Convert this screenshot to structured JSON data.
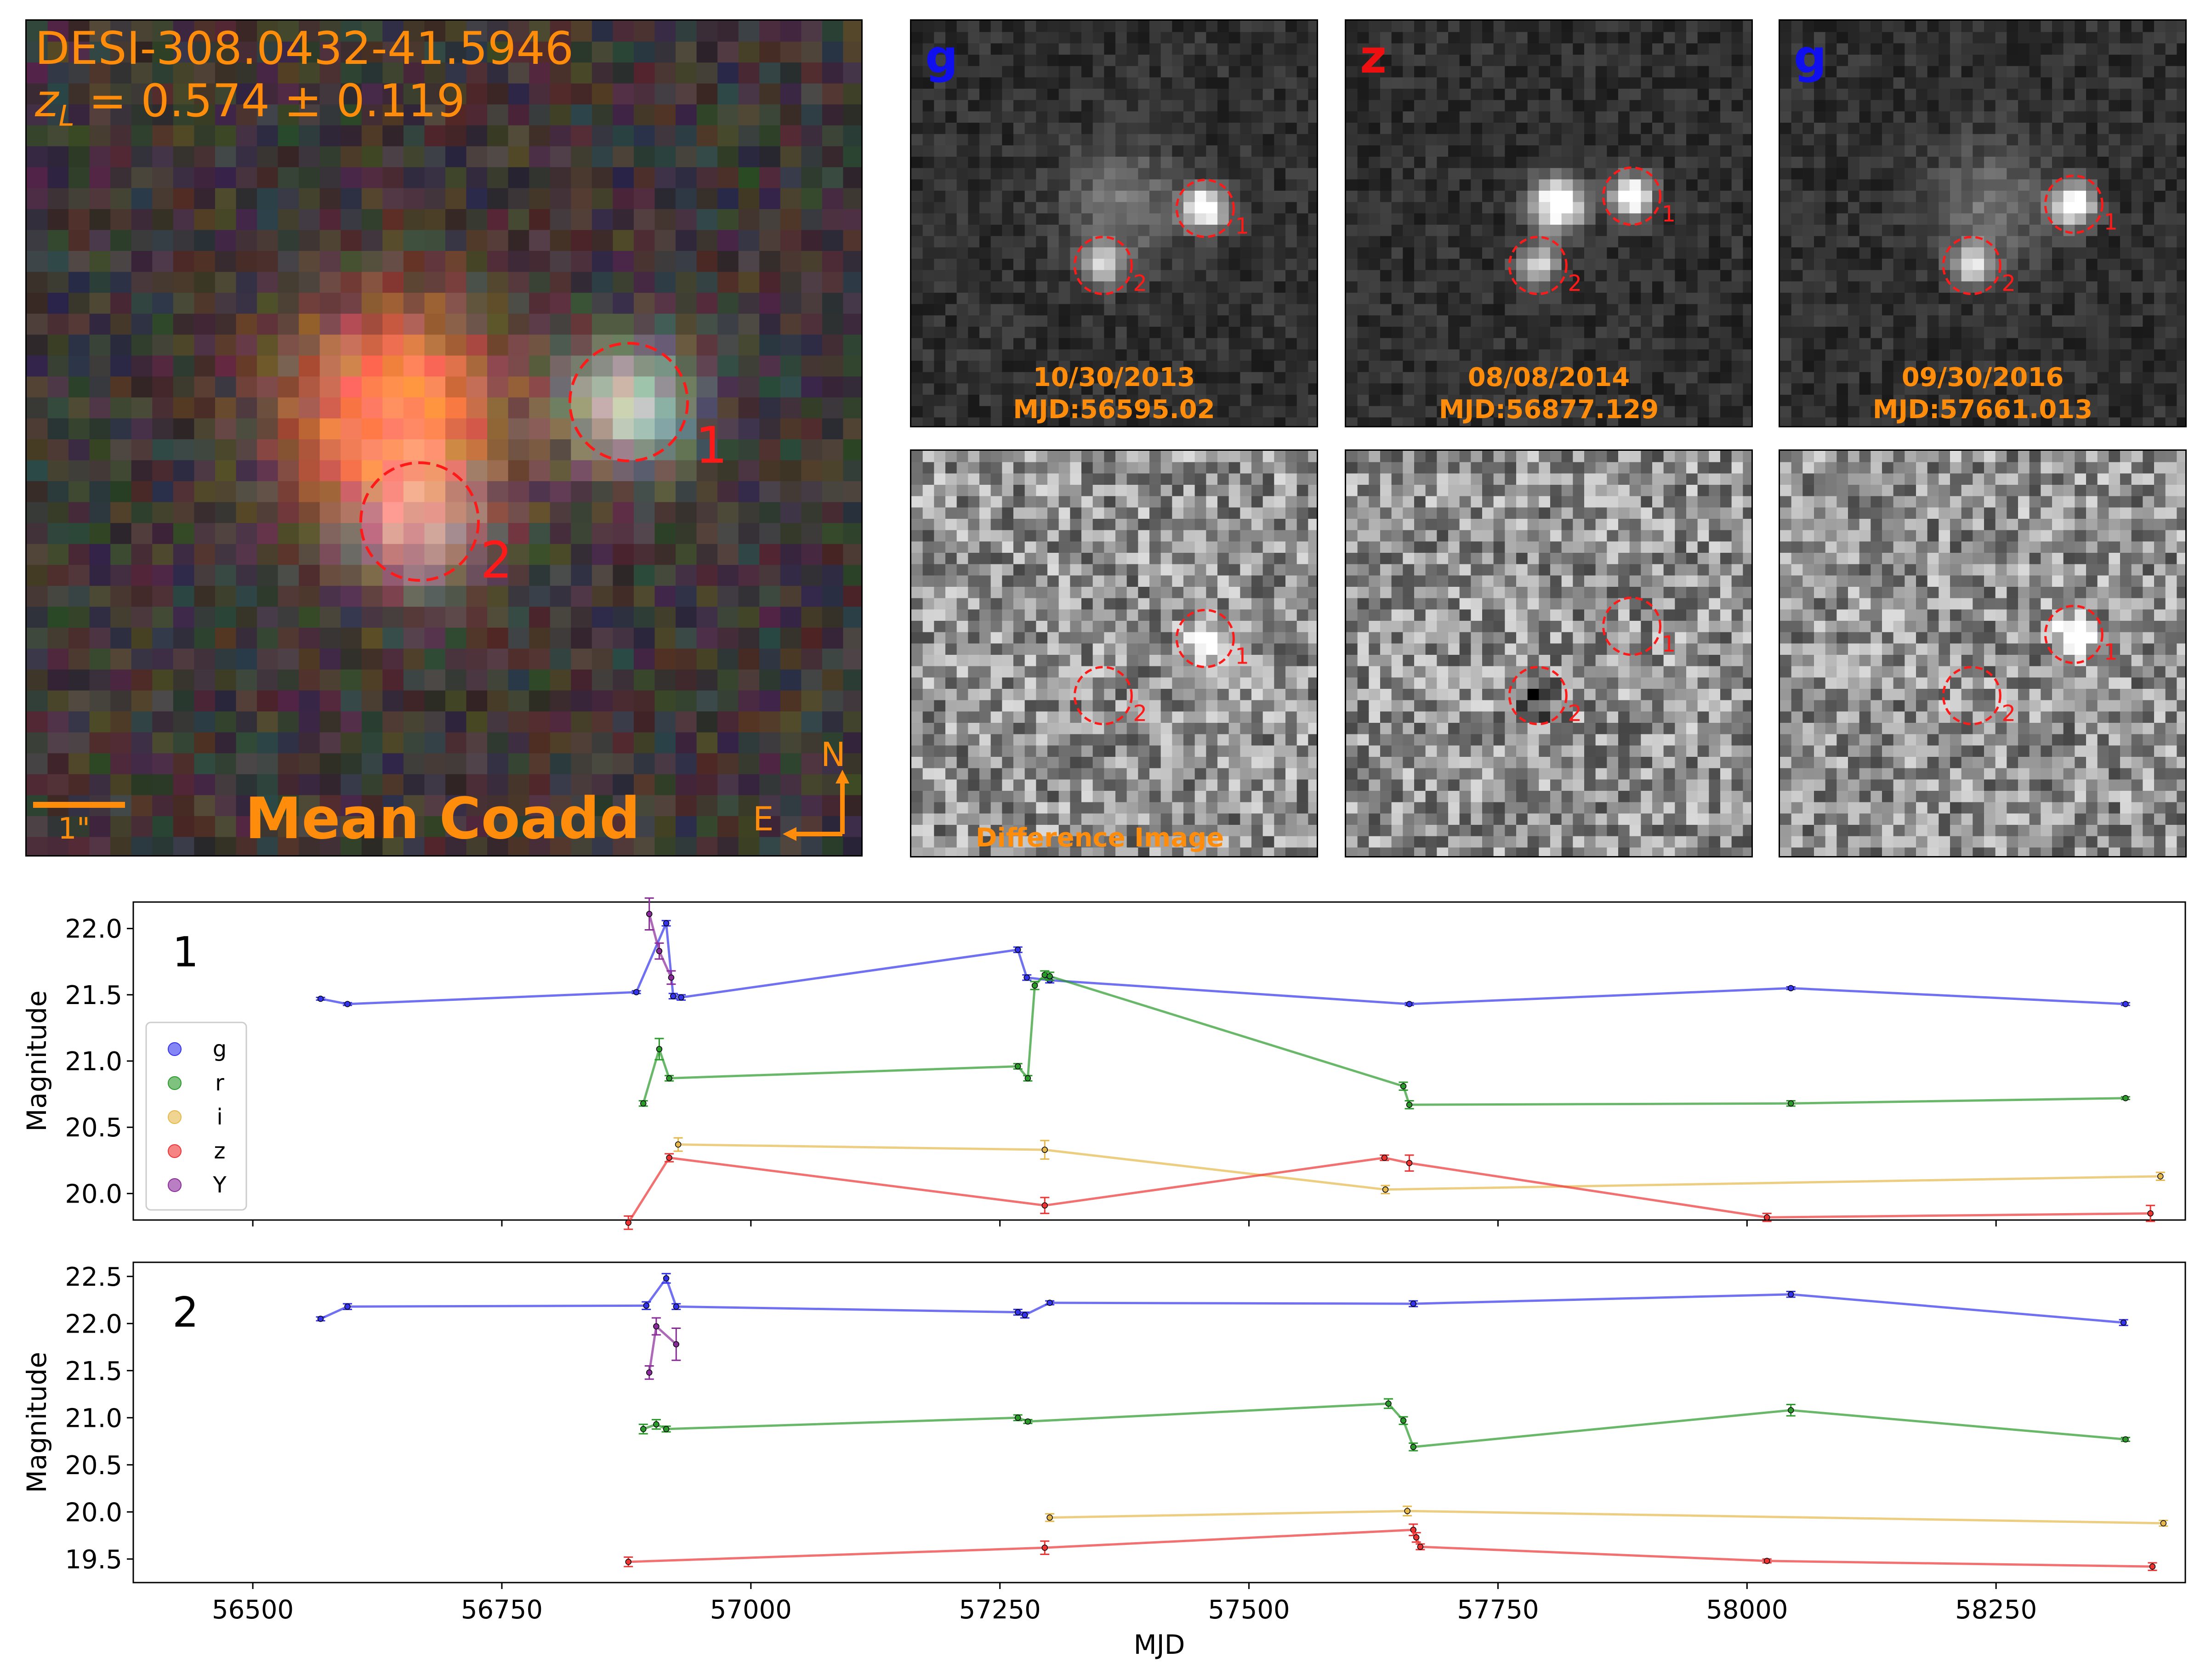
{
  "coadd": {
    "title": "DESI-308.0432-41.5946",
    "redshift": "z_L = 0.574 ± 0.119",
    "redshift_sym": "z",
    "redshift_sub": "L",
    "redshift_val": " = 0.574 ± 0.119",
    "caption": "Mean Coadd",
    "scale_label": "1\"",
    "compass_n": "N",
    "compass_e": "E",
    "image_labels": [
      "1",
      "2"
    ]
  },
  "epochs": [
    {
      "band": "g",
      "band_color": "#1010ee",
      "date": "10/30/2013",
      "mjd": "MJD:56595.02"
    },
    {
      "band": "z",
      "band_color": "#ee1010",
      "date": "08/08/2014",
      "mjd": "MJD:56877.129"
    },
    {
      "band": "g",
      "band_color": "#1010ee",
      "date": "09/30/2016",
      "mjd": "MJD:57661.013"
    }
  ],
  "difference_label": "Difference Image",
  "colors": {
    "accent": "#ff8c0a",
    "circle": "#ff1a1a",
    "g": "#3333ee",
    "r": "#2a9a2a",
    "i": "#e6b84a",
    "z": "#ee3333",
    "Y": "#8a2a9a"
  },
  "chart_data": [
    {
      "type": "line",
      "panel_label": "1",
      "xlabel": "",
      "ylabel": "Magnitude",
      "xlim": [
        56380,
        58440
      ],
      "ylim": [
        22.2,
        19.8
      ],
      "yticks": [
        "20.0",
        "20.5",
        "21.0",
        "21.5",
        "22.0"
      ],
      "legend": {
        "placement": "center-left",
        "entries": [
          "g",
          "r",
          "i",
          "z",
          "Y"
        ]
      },
      "series": [
        {
          "name": "g",
          "points": [
            [
              56568,
              21.47,
              0.01
            ],
            [
              56595,
              21.43,
              0.01
            ],
            [
              56885,
              21.52,
              0.01
            ],
            [
              56915,
              22.04,
              0.02
            ],
            [
              56922,
              21.49,
              0.02
            ],
            [
              56930,
              21.48,
              0.02
            ],
            [
              57268,
              21.84,
              0.02
            ],
            [
              57277,
              21.63,
              0.02
            ],
            [
              57300,
              21.61,
              0.02
            ],
            [
              57661,
              21.43,
              0.01
            ],
            [
              58044,
              21.55,
              0.01
            ],
            [
              58380,
              21.43,
              0.01
            ]
          ]
        },
        {
          "name": "r",
          "points": [
            [
              56892,
              20.68,
              0.02
            ],
            [
              56908,
              21.09,
              0.08
            ],
            [
              56918,
              20.87,
              0.02
            ],
            [
              57268,
              20.96,
              0.02
            ],
            [
              57278,
              20.87,
              0.02
            ],
            [
              57285,
              21.57,
              0.03
            ],
            [
              57295,
              21.65,
              0.03
            ],
            [
              57300,
              21.64,
              0.03
            ],
            [
              57655,
              20.81,
              0.03
            ],
            [
              57661,
              20.67,
              0.03
            ],
            [
              58044,
              20.68,
              0.02
            ],
            [
              58380,
              20.72,
              0.01
            ]
          ]
        },
        {
          "name": "i",
          "points": [
            [
              56927,
              20.37,
              0.05
            ],
            [
              57295,
              20.33,
              0.07
            ],
            [
              57637,
              20.03,
              0.03
            ],
            [
              58415,
              20.13,
              0.03
            ]
          ]
        },
        {
          "name": "z",
          "points": [
            [
              56877,
              19.78,
              0.05
            ],
            [
              56918,
              20.27,
              0.03
            ],
            [
              57295,
              19.91,
              0.06
            ],
            [
              57636,
              20.27,
              0.02
            ],
            [
              57661,
              20.23,
              0.06
            ],
            [
              58020,
              19.82,
              0.03
            ],
            [
              58405,
              19.85,
              0.06
            ]
          ]
        },
        {
          "name": "Y",
          "points": [
            [
              56898,
              22.11,
              0.12
            ],
            [
              56908,
              21.83,
              0.06
            ],
            [
              56920,
              21.63,
              0.05
            ]
          ]
        }
      ]
    },
    {
      "type": "line",
      "panel_label": "2",
      "xlabel": "MJD",
      "ylabel": "Magnitude",
      "xlim": [
        56380,
        58440
      ],
      "ylim": [
        22.65,
        19.25
      ],
      "yticks": [
        "19.5",
        "20.0",
        "20.5",
        "21.0",
        "21.5",
        "22.0",
        "22.5"
      ],
      "xticks": [
        "56500",
        "56750",
        "57000",
        "57250",
        "57500",
        "57750",
        "58000",
        "58250"
      ],
      "series": [
        {
          "name": "g",
          "points": [
            [
              56568,
              22.05,
              0.02
            ],
            [
              56595,
              22.18,
              0.03
            ],
            [
              56895,
              22.19,
              0.04
            ],
            [
              56915,
              22.48,
              0.05
            ],
            [
              56925,
              22.18,
              0.03
            ],
            [
              57268,
              22.12,
              0.03
            ],
            [
              57275,
              22.09,
              0.03
            ],
            [
              57300,
              22.22,
              0.02
            ],
            [
              57665,
              22.21,
              0.03
            ],
            [
              58044,
              22.31,
              0.03
            ],
            [
              58378,
              22.01,
              0.03
            ]
          ]
        },
        {
          "name": "r",
          "points": [
            [
              56892,
              20.88,
              0.05
            ],
            [
              56905,
              20.93,
              0.05
            ],
            [
              56915,
              20.88,
              0.03
            ],
            [
              57268,
              21.0,
              0.03
            ],
            [
              57278,
              20.96,
              0.02
            ],
            [
              57640,
              21.15,
              0.05
            ],
            [
              57655,
              20.97,
              0.04
            ],
            [
              57665,
              20.69,
              0.04
            ],
            [
              58044,
              21.08,
              0.06
            ],
            [
              58380,
              20.77,
              0.02
            ]
          ]
        },
        {
          "name": "i",
          "points": [
            [
              57300,
              19.94,
              0.04
            ],
            [
              57659,
              20.01,
              0.05
            ],
            [
              58418,
              19.88,
              0.03
            ]
          ]
        },
        {
          "name": "z",
          "points": [
            [
              56877,
              19.47,
              0.05
            ],
            [
              57295,
              19.62,
              0.07
            ],
            [
              57665,
              19.81,
              0.06
            ],
            [
              57668,
              19.73,
              0.05
            ],
            [
              57672,
              19.63,
              0.03
            ],
            [
              58020,
              19.48,
              0.02
            ],
            [
              58407,
              19.42,
              0.04
            ]
          ]
        },
        {
          "name": "Y",
          "points": [
            [
              56898,
              21.48,
              0.07
            ],
            [
              56905,
              21.97,
              0.09
            ],
            [
              56925,
              21.78,
              0.17
            ]
          ]
        }
      ]
    }
  ]
}
